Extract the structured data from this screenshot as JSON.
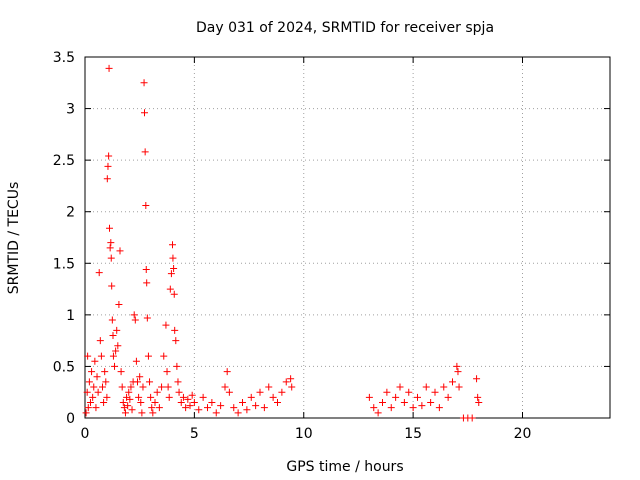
{
  "chart_data": {
    "type": "scatter",
    "title": "Day 031 of 2024, SRMTID for receiver spja",
    "xlabel": "GPS time / hours",
    "ylabel": "SRMTID / TECUs",
    "xlim": [
      0,
      24
    ],
    "ylim": [
      0,
      3.5
    ],
    "xticks": [
      0,
      5,
      10,
      15,
      20
    ],
    "yticks": [
      0,
      0.5,
      1,
      1.5,
      2,
      2.5,
      3,
      3.5
    ],
    "grid": true,
    "marker": "+",
    "color": "#ff0000",
    "series": [
      {
        "name": "SRMTID",
        "points": [
          [
            0.05,
            0.05
          ],
          [
            0.1,
            0.25
          ],
          [
            0.12,
            0.6
          ],
          [
            0.15,
            0.1
          ],
          [
            0.2,
            0.35
          ],
          [
            0.25,
            0.15
          ],
          [
            0.3,
            0.45
          ],
          [
            0.35,
            0.2
          ],
          [
            0.4,
            0.3
          ],
          [
            0.45,
            0.55
          ],
          [
            0.5,
            0.1
          ],
          [
            0.55,
            0.4
          ],
          [
            0.6,
            0.25
          ],
          [
            0.65,
            1.41
          ],
          [
            0.7,
            0.75
          ],
          [
            0.75,
            0.6
          ],
          [
            0.8,
            0.3
          ],
          [
            0.85,
            0.15
          ],
          [
            0.9,
            0.45
          ],
          [
            0.95,
            0.35
          ],
          [
            1.0,
            0.2
          ],
          [
            1.02,
            2.32
          ],
          [
            1.05,
            2.44
          ],
          [
            1.08,
            2.54
          ],
          [
            1.1,
            3.39
          ],
          [
            1.12,
            1.84
          ],
          [
            1.15,
            1.65
          ],
          [
            1.18,
            1.7
          ],
          [
            1.2,
            1.55
          ],
          [
            1.22,
            1.28
          ],
          [
            1.25,
            0.95
          ],
          [
            1.28,
            0.8
          ],
          [
            1.3,
            0.6
          ],
          [
            1.35,
            0.5
          ],
          [
            1.4,
            0.65
          ],
          [
            1.45,
            0.85
          ],
          [
            1.5,
            0.7
          ],
          [
            1.55,
            1.1
          ],
          [
            1.6,
            1.62
          ],
          [
            1.65,
            0.45
          ],
          [
            1.7,
            0.3
          ],
          [
            1.75,
            0.15
          ],
          [
            1.8,
            0.1
          ],
          [
            1.85,
            0.05
          ],
          [
            1.9,
            0.2
          ],
          [
            1.95,
            0.12
          ],
          [
            2.0,
            0.25
          ],
          [
            2.05,
            0.18
          ],
          [
            2.1,
            0.3
          ],
          [
            2.15,
            0.08
          ],
          [
            2.2,
            0.35
          ],
          [
            2.25,
            1.0
          ],
          [
            2.3,
            0.95
          ],
          [
            2.35,
            0.55
          ],
          [
            2.4,
            0.35
          ],
          [
            2.45,
            0.2
          ],
          [
            2.5,
            0.4
          ],
          [
            2.55,
            0.15
          ],
          [
            2.6,
            0.05
          ],
          [
            2.65,
            0.3
          ],
          [
            2.7,
            3.25
          ],
          [
            2.72,
            2.96
          ],
          [
            2.75,
            2.58
          ],
          [
            2.78,
            2.06
          ],
          [
            2.8,
            1.44
          ],
          [
            2.82,
            1.31
          ],
          [
            2.85,
            0.97
          ],
          [
            2.9,
            0.6
          ],
          [
            2.95,
            0.35
          ],
          [
            3.0,
            0.2
          ],
          [
            3.05,
            0.1
          ],
          [
            3.1,
            0.05
          ],
          [
            3.2,
            0.15
          ],
          [
            3.3,
            0.25
          ],
          [
            3.4,
            0.1
          ],
          [
            3.5,
            0.3
          ],
          [
            3.6,
            0.6
          ],
          [
            3.7,
            0.9
          ],
          [
            3.75,
            0.45
          ],
          [
            3.8,
            0.3
          ],
          [
            3.85,
            0.2
          ],
          [
            3.9,
            1.25
          ],
          [
            3.95,
            1.4
          ],
          [
            4.0,
            1.68
          ],
          [
            4.02,
            1.55
          ],
          [
            4.05,
            1.45
          ],
          [
            4.08,
            1.2
          ],
          [
            4.1,
            0.85
          ],
          [
            4.15,
            0.75
          ],
          [
            4.2,
            0.5
          ],
          [
            4.25,
            0.35
          ],
          [
            4.3,
            0.25
          ],
          [
            4.4,
            0.15
          ],
          [
            4.5,
            0.2
          ],
          [
            4.6,
            0.1
          ],
          [
            4.7,
            0.18
          ],
          [
            4.8,
            0.12
          ],
          [
            4.9,
            0.22
          ],
          [
            5.0,
            0.15
          ],
          [
            5.2,
            0.08
          ],
          [
            5.4,
            0.2
          ],
          [
            5.6,
            0.1
          ],
          [
            5.8,
            0.15
          ],
          [
            6.0,
            0.05
          ],
          [
            6.2,
            0.12
          ],
          [
            6.4,
            0.3
          ],
          [
            6.5,
            0.45
          ],
          [
            6.6,
            0.25
          ],
          [
            6.8,
            0.1
          ],
          [
            7.0,
            0.05
          ],
          [
            7.2,
            0.15
          ],
          [
            7.4,
            0.08
          ],
          [
            7.6,
            0.2
          ],
          [
            7.8,
            0.12
          ],
          [
            8.0,
            0.25
          ],
          [
            8.2,
            0.1
          ],
          [
            8.4,
            0.3
          ],
          [
            8.6,
            0.2
          ],
          [
            8.8,
            0.15
          ],
          [
            9.0,
            0.25
          ],
          [
            9.2,
            0.35
          ],
          [
            9.4,
            0.38
          ],
          [
            9.45,
            0.3
          ],
          [
            13.0,
            0.2
          ],
          [
            13.2,
            0.1
          ],
          [
            13.4,
            0.05
          ],
          [
            13.6,
            0.15
          ],
          [
            13.8,
            0.25
          ],
          [
            14.0,
            0.1
          ],
          [
            14.2,
            0.2
          ],
          [
            14.4,
            0.3
          ],
          [
            14.6,
            0.15
          ],
          [
            14.8,
            0.25
          ],
          [
            15.0,
            0.1
          ],
          [
            15.2,
            0.2
          ],
          [
            15.4,
            0.12
          ],
          [
            15.6,
            0.3
          ],
          [
            15.8,
            0.15
          ],
          [
            16.0,
            0.25
          ],
          [
            16.2,
            0.1
          ],
          [
            16.4,
            0.3
          ],
          [
            16.6,
            0.2
          ],
          [
            16.8,
            0.35
          ],
          [
            17.0,
            0.5
          ],
          [
            17.05,
            0.45
          ],
          [
            17.1,
            0.3
          ],
          [
            17.3,
            0.0
          ],
          [
            17.5,
            0.0
          ],
          [
            17.7,
            0.0
          ],
          [
            17.9,
            0.38
          ],
          [
            17.95,
            0.2
          ],
          [
            18.0,
            0.15
          ]
        ]
      }
    ]
  }
}
